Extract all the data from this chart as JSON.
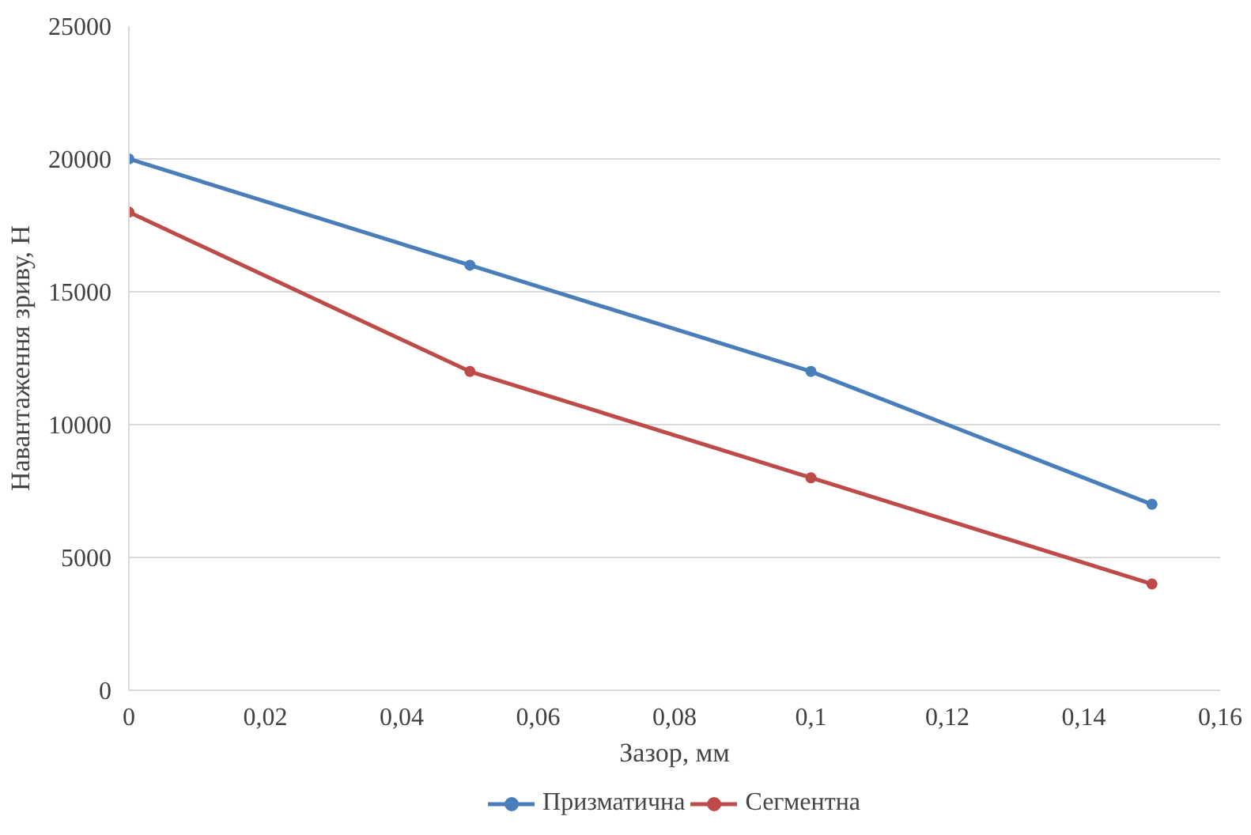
{
  "chart_data": {
    "type": "line",
    "xlabel": "Зазор, мм",
    "ylabel": "Навантаження зриву, Н",
    "x": [
      0,
      0.05,
      0.1,
      0.15
    ],
    "series": [
      {
        "name": "Призматична",
        "color": "#4a7ebb",
        "values": [
          20000,
          16000,
          12000,
          7000
        ]
      },
      {
        "name": "Сегментна",
        "color": "#be4b48",
        "values": [
          18000,
          12000,
          8000,
          4000
        ]
      }
    ],
    "xlim": [
      0,
      0.16
    ],
    "xticks": [
      0,
      {
        "value": 0.02,
        "label": "0,02"
      },
      {
        "value": 0.04,
        "label": "0,04"
      },
      {
        "value": 0.06,
        "label": "0,06"
      },
      {
        "value": 0.08,
        "label": "0,08"
      },
      {
        "value": 0.1,
        "label": "0,1"
      },
      {
        "value": 0.12,
        "label": "0,12"
      },
      {
        "value": 0.14,
        "label": "0,14"
      },
      {
        "value": 0.16,
        "label": "0,16"
      }
    ],
    "ylim": [
      0,
      25000
    ],
    "yticks": [
      0,
      5000,
      10000,
      15000,
      20000,
      25000
    ],
    "grid": "y",
    "legend": "bottom",
    "marker": "circle",
    "line_style": "solid"
  }
}
